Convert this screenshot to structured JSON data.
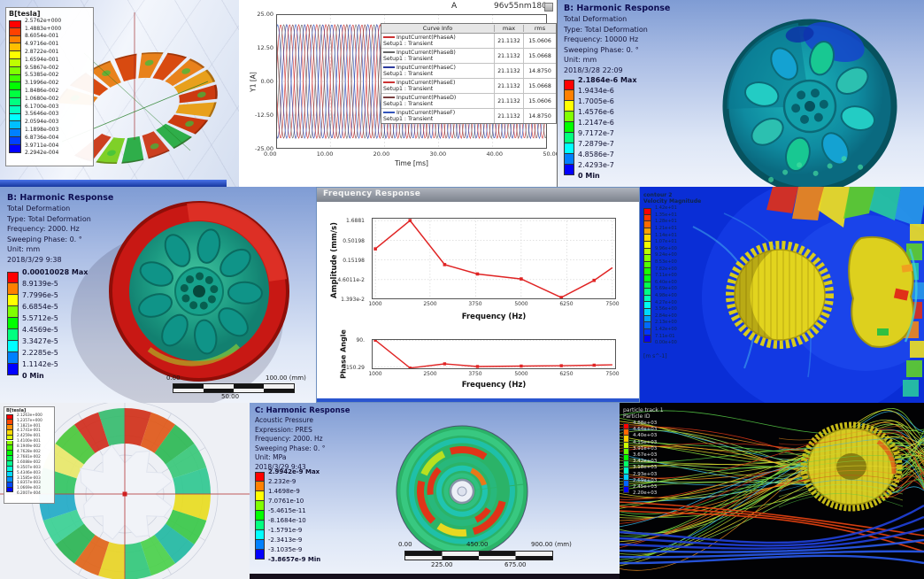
{
  "colors": {
    "ansys_header_text": "#0d0d52",
    "cfd_background": "#0a2ed6",
    "curve_red": "#cc3333",
    "curve_navy": "#2b3a9e",
    "response_line": "#e02424",
    "rainbow": [
      "#ff0000",
      "#ff8000",
      "#ffff00",
      "#00ff00",
      "#00ffff",
      "#0000ff"
    ]
  },
  "panels": {
    "flux_top": {
      "legend_title": "B[tesla]",
      "legend_values": [
        "2.5762e+000",
        "1.4883e+000",
        "8.6054e-001",
        "4.9716e-001",
        "2.8722e-001",
        "1.6594e-001",
        "9.5867e-002",
        "5.5385e-002",
        "3.1996e-002",
        "1.8486e-002",
        "1.0680e-002",
        "6.1700e-003",
        "3.5646e-003",
        "2.0594e-003",
        "1.1898e-003",
        "6.8736e-004",
        "3.9711e-004",
        "2.2942e-004"
      ]
    },
    "harmonic_top": {
      "title": "B: Harmonic Response",
      "lines": [
        "Total Deformation",
        "Type: Total Deformation",
        "Frequency: 10000 Hz",
        "Sweeping Phase: 0. °",
        "Unit: mm",
        "2018/3/28 22:09"
      ],
      "legend": [
        "2.1864e-6 Max",
        "1.9434e-6",
        "1.7005e-6",
        "1.4576e-6",
        "1.2147e-6",
        "9.7172e-7",
        "7.2879e-7",
        "4.8586e-7",
        "2.4293e-7",
        "0 Min"
      ]
    },
    "harmonic_left": {
      "title": "B: Harmonic Response",
      "lines": [
        "Total Deformation",
        "Type: Total Deformation",
        "Frequency: 2000. Hz",
        "Sweeping Phase: 0. °",
        "Unit: mm",
        "2018/3/29 9:38"
      ],
      "legend": [
        "0.00010028 Max",
        "8.9139e-5",
        "7.7996e-5",
        "6.6854e-5",
        "5.5712e-5",
        "4.4569e-5",
        "3.3427e-5",
        "2.2285e-5",
        "1.1142e-5",
        "0 Min"
      ],
      "scale": {
        "left": "0.00",
        "mid": "50.00",
        "right": "100.00 (mm)"
      }
    },
    "freq_response": {
      "window_title": "Frequency Response"
    },
    "cfd_velocity": {
      "legend_title_1": "contour 2",
      "legend_title_2": "Velocity Magnitude",
      "unit": "[m s^-1]",
      "values": [
        "1.42e+01",
        "1.35e+01",
        "1.28e+01",
        "1.21e+01",
        "1.14e+01",
        "1.07e+01",
        "9.96e+00",
        "9.24e+00",
        "8.53e+00",
        "7.82e+00",
        "7.11e+00",
        "6.40e+00",
        "5.69e+00",
        "4.98e+00",
        "4.27e+00",
        "3.56e+00",
        "2.84e+00",
        "2.13e+00",
        "1.42e+00",
        "7.11e-01",
        "0.00e+00"
      ]
    },
    "flux_bottom": {
      "legend_title": "B[tesla]",
      "legend_values": [
        "2.1263e+000",
        "1.2357e+000",
        "7.1821e-001",
        "4.1741e-001",
        "2.4259e-001",
        "1.4100e-001",
        "8.1949e-002",
        "4.7628e-002",
        "2.7681e-002",
        "1.6088e-002",
        "9.3507e-003",
        "5.4346e-003",
        "3.1585e-003",
        "1.8357e-003",
        "1.0669e-003",
        "6.2007e-004"
      ]
    },
    "acoustic": {
      "title": "C: Harmonic Response",
      "lines": [
        "Acoustic Pressure",
        "Expression: PRES",
        "Frequency: 2000. Hz",
        "Sweeping Phase: 0. °",
        "Unit: MPa",
        "2018/3/29 9:43"
      ],
      "legend": [
        "2.9942e-9 Max",
        "2.232e-9",
        "1.4698e-9",
        "7.0761e-10",
        "-5.4615e-11",
        "-8.1684e-10",
        "-1.5791e-9",
        "-2.3413e-9",
        "-3.1035e-9",
        "-3.8657e-9 Min"
      ],
      "scale": {
        "r1_left": "0.00",
        "r1_mid": "450.00",
        "r1_right": "900.00 (mm)",
        "r2_left": "225.00",
        "r2_right": "675.00"
      }
    },
    "particles": {
      "legend_title_1": "particle track 1",
      "legend_title_2": "Particle ID",
      "values": [
        "4.88e+03",
        "4.64e+03",
        "4.40e+03",
        "4.15e+03",
        "3.91e+03",
        "3.67e+03",
        "3.42e+03",
        "3.18e+03",
        "2.93e+03",
        "2.69e+03",
        "2.45e+03",
        "2.20e+03"
      ]
    }
  },
  "chart_data": [
    {
      "id": "input-currents",
      "type": "line",
      "title": "A",
      "subtitle": "96v55nm180",
      "xlabel": "Time [ms]",
      "ylabel": "Y1 [A]",
      "xlim": [
        0,
        50
      ],
      "ylim": [
        -25,
        25
      ],
      "xticks": [
        "0.00",
        "10.00",
        "20.00",
        "30.00",
        "40.00",
        "50.00"
      ],
      "yticks": [
        "25.00",
        "12.50",
        "0.00",
        "-12.50",
        "-25.00"
      ],
      "grid": true,
      "waveform": {
        "shape": "sine",
        "amplitude": 21.1132,
        "period_ms": 3.3333,
        "phase_offsets_deg": [
          0,
          60,
          120,
          180,
          240,
          300
        ]
      },
      "legend_table": {
        "headers": [
          "Curve Info",
          "max",
          "rms"
        ],
        "rows": [
          {
            "name": "InputCurrent(PhaseA)",
            "setup": "Setup1 : Transient",
            "max": "21.1132",
            "rms": "15.0606",
            "color": "#cc3333"
          },
          {
            "name": "InputCurrent(PhaseB)",
            "setup": "Setup1 : Transient",
            "max": "21.1132",
            "rms": "15.0668",
            "color": "#666666"
          },
          {
            "name": "InputCurrent(PhaseC)",
            "setup": "Setup1 : Transient",
            "max": "21.1132",
            "rms": "14.8750",
            "color": "#2b3a9e"
          },
          {
            "name": "InputCurrent(PhaseE)",
            "setup": "Setup1 : Transient",
            "max": "21.1132",
            "rms": "15.0668",
            "color": "#cc3333"
          },
          {
            "name": "InputCurrent(PhaseD)",
            "setup": "Setup1 : Transient",
            "max": "21.1132",
            "rms": "15.0606",
            "color": "#7a4040"
          },
          {
            "name": "InputCurrent(PhaseF)",
            "setup": "Setup1 : Transient",
            "max": "21.1132",
            "rms": "14.8750",
            "color": "#3355bb"
          }
        ]
      }
    },
    {
      "id": "amplitude-response",
      "type": "line",
      "yscale": "log",
      "ylabel": "Amplitude (mm/s)",
      "xlabel": "Frequency (Hz)",
      "yticks": [
        "1.6881",
        "0.50198",
        "0.15198",
        "4.6011e-2",
        "1.393e-2"
      ],
      "xticks": [
        "1000",
        "2500",
        "3750",
        "5000",
        "6250",
        "7500"
      ],
      "xlim": [
        900,
        7600
      ],
      "x": [
        1000,
        1950,
        2900,
        3800,
        5000,
        6100,
        7000,
        7500
      ],
      "y": [
        0.3,
        1.6881,
        0.115,
        0.065,
        0.048,
        0.0155,
        0.044,
        0.095
      ],
      "line_color": "#e02424",
      "grid": true,
      "legend_position": "none"
    },
    {
      "id": "phase-response",
      "type": "line",
      "ylabel": "Phase Angle",
      "xlabel": "Frequency (Hz)",
      "yticks": [
        "90.",
        "-150.29"
      ],
      "ytick_values": [
        90,
        -150.29
      ],
      "xticks": [
        "1000",
        "2500",
        "3750",
        "5000",
        "6250",
        "7500"
      ],
      "xlim": [
        900,
        7600
      ],
      "ylim": [
        -170,
        100
      ],
      "x": [
        1000,
        1950,
        2900,
        3800,
        5000,
        6100,
        7000,
        7500
      ],
      "y": [
        90,
        -160,
        -122,
        -146,
        -142,
        -139,
        -134,
        -131
      ],
      "line_color": "#e02424",
      "grid": false,
      "legend_position": "none"
    }
  ]
}
